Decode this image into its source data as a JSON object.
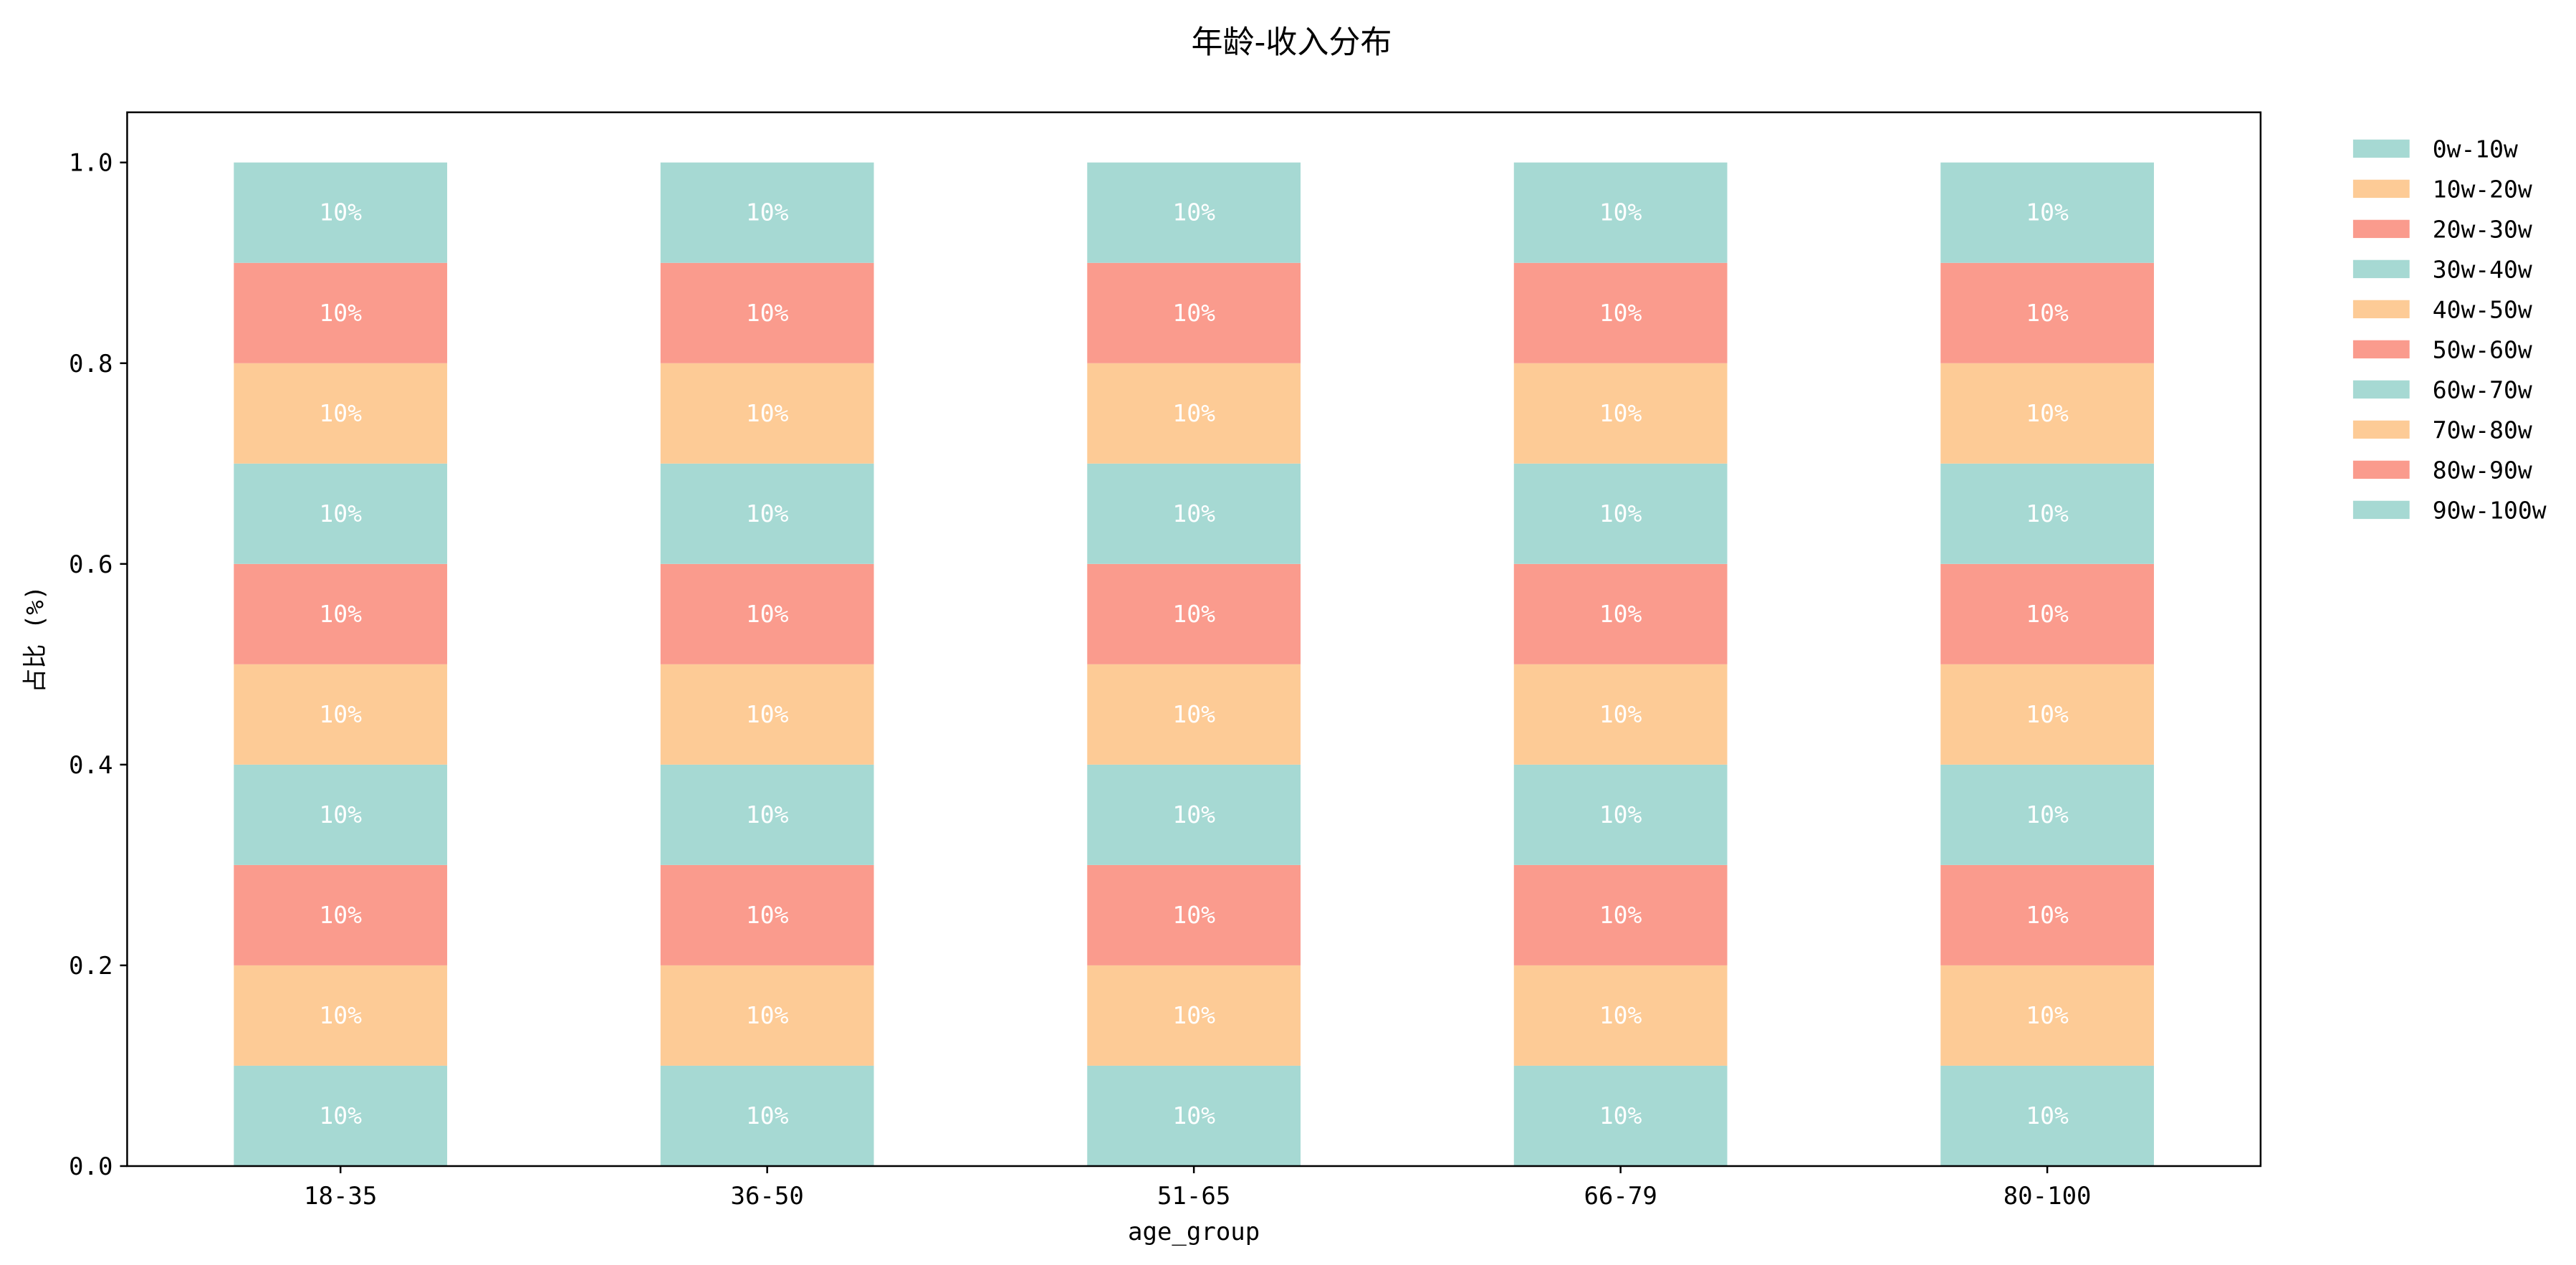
{
  "chart_data": {
    "type": "bar",
    "stacked": true,
    "title": "年龄-收入分布",
    "xlabel": "age_group",
    "ylabel": "占比 (%)",
    "ylim": [
      0,
      1.05
    ],
    "yticks": [
      "0.0",
      "0.2",
      "0.4",
      "0.6",
      "0.8",
      "1.0"
    ],
    "ytick_values": [
      0,
      0.2,
      0.4,
      0.6,
      0.8,
      1.0
    ],
    "categories": [
      "18-35",
      "36-50",
      "51-65",
      "66-79",
      "80-100"
    ],
    "grid": false,
    "legend_position": "outside-right",
    "series": [
      {
        "name": "0w-10w",
        "color": "#a6d9d3",
        "values": [
          0.1,
          0.1,
          0.1,
          0.1,
          0.1
        ],
        "labels": [
          "10%",
          "10%",
          "10%",
          "10%",
          "10%"
        ]
      },
      {
        "name": "10w-20w",
        "color": "#fdcb96",
        "values": [
          0.1,
          0.1,
          0.1,
          0.1,
          0.1
        ],
        "labels": [
          "10%",
          "10%",
          "10%",
          "10%",
          "10%"
        ]
      },
      {
        "name": "20w-30w",
        "color": "#fa9b8d",
        "values": [
          0.1,
          0.1,
          0.1,
          0.1,
          0.1
        ],
        "labels": [
          "10%",
          "10%",
          "10%",
          "10%",
          "10%"
        ]
      },
      {
        "name": "30w-40w",
        "color": "#a6d9d3",
        "values": [
          0.1,
          0.1,
          0.1,
          0.1,
          0.1
        ],
        "labels": [
          "10%",
          "10%",
          "10%",
          "10%",
          "10%"
        ]
      },
      {
        "name": "40w-50w",
        "color": "#fdcb96",
        "values": [
          0.1,
          0.1,
          0.1,
          0.1,
          0.1
        ],
        "labels": [
          "10%",
          "10%",
          "10%",
          "10%",
          "10%"
        ]
      },
      {
        "name": "50w-60w",
        "color": "#fa9b8d",
        "values": [
          0.1,
          0.1,
          0.1,
          0.1,
          0.1
        ],
        "labels": [
          "10%",
          "10%",
          "10%",
          "10%",
          "10%"
        ]
      },
      {
        "name": "60w-70w",
        "color": "#a6d9d3",
        "values": [
          0.1,
          0.1,
          0.1,
          0.1,
          0.1
        ],
        "labels": [
          "10%",
          "10%",
          "10%",
          "10%",
          "10%"
        ]
      },
      {
        "name": "70w-80w",
        "color": "#fdcb96",
        "values": [
          0.1,
          0.1,
          0.1,
          0.1,
          0.1
        ],
        "labels": [
          "10%",
          "10%",
          "10%",
          "10%",
          "10%"
        ]
      },
      {
        "name": "80w-90w",
        "color": "#fa9b8d",
        "values": [
          0.1,
          0.1,
          0.1,
          0.1,
          0.1
        ],
        "labels": [
          "10%",
          "10%",
          "10%",
          "10%",
          "10%"
        ]
      },
      {
        "name": "90w-100w",
        "color": "#a6d9d3",
        "values": [
          0.1,
          0.1,
          0.1,
          0.1,
          0.1
        ],
        "labels": [
          "10%",
          "10%",
          "10%",
          "10%",
          "10%"
        ]
      }
    ]
  }
}
